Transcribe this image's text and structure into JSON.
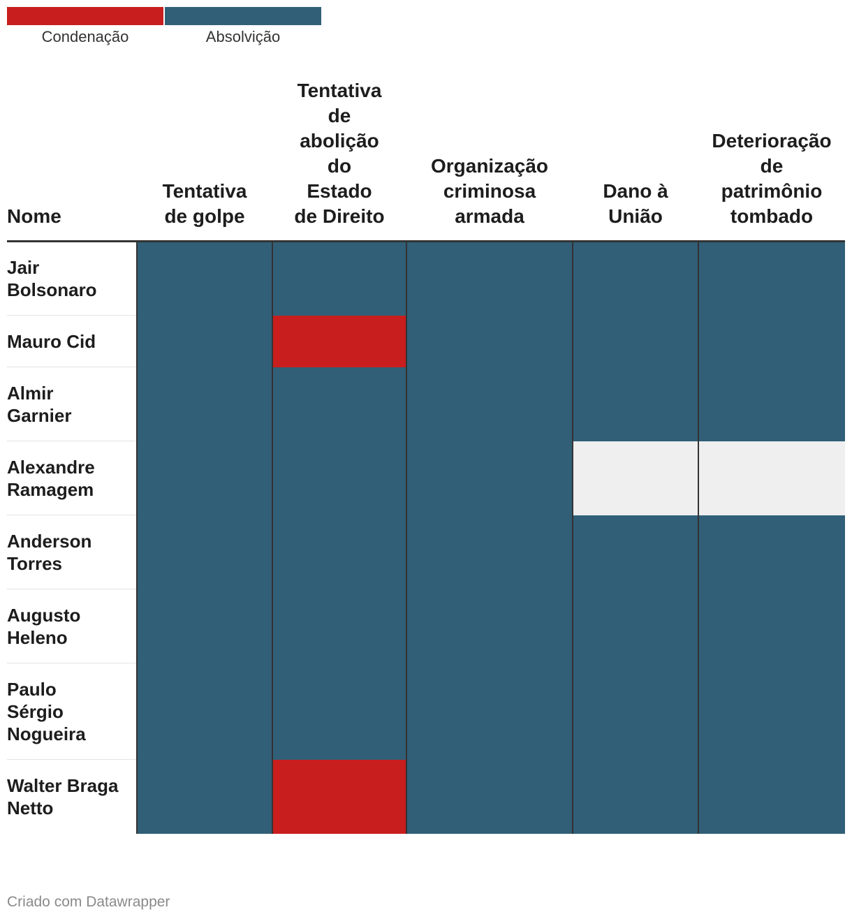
{
  "legend": [
    {
      "label": "Condenação",
      "color": "#c81e1e"
    },
    {
      "label": "Absolvição",
      "color": "#315f77"
    }
  ],
  "colors": {
    "none": "#efefef"
  },
  "chart_data": {
    "type": "table",
    "name_header": "Nome",
    "columns": [
      "Tentativa de golpe",
      "Tentativa de abolição do Estado de Direito",
      "Organização criminosa armada",
      "Dano à União",
      "Deterioração de patrimônio tombado"
    ],
    "rows": [
      {
        "name": "Jair Bolsonaro",
        "values": [
          "Absolvição",
          "Absolvição",
          "Absolvição",
          "Absolvição",
          "Absolvição"
        ]
      },
      {
        "name": "Mauro Cid",
        "values": [
          "Absolvição",
          "Condenação",
          "Absolvição",
          "Absolvição",
          "Absolvição"
        ]
      },
      {
        "name": "Almir Garnier",
        "values": [
          "Absolvição",
          "Absolvição",
          "Absolvição",
          "Absolvição",
          "Absolvição"
        ]
      },
      {
        "name": "Alexandre Ramagem",
        "values": [
          "Absolvição",
          "Absolvição",
          "Absolvição",
          "",
          ""
        ]
      },
      {
        "name": "Anderson Torres",
        "values": [
          "Absolvição",
          "Absolvição",
          "Absolvição",
          "Absolvição",
          "Absolvição"
        ]
      },
      {
        "name": "Augusto Heleno",
        "values": [
          "Absolvição",
          "Absolvição",
          "Absolvição",
          "Absolvição",
          "Absolvição"
        ]
      },
      {
        "name": "Paulo Sérgio Nogueira",
        "values": [
          "Absolvição",
          "Absolvição",
          "Absolvição",
          "Absolvição",
          "Absolvição"
        ]
      },
      {
        "name": "Walter Braga Netto",
        "values": [
          "Absolvição",
          "Condenação",
          "Absolvição",
          "Absolvição",
          "Absolvição"
        ]
      }
    ]
  },
  "footer": {
    "credit": "Criado com Datawrapper"
  }
}
